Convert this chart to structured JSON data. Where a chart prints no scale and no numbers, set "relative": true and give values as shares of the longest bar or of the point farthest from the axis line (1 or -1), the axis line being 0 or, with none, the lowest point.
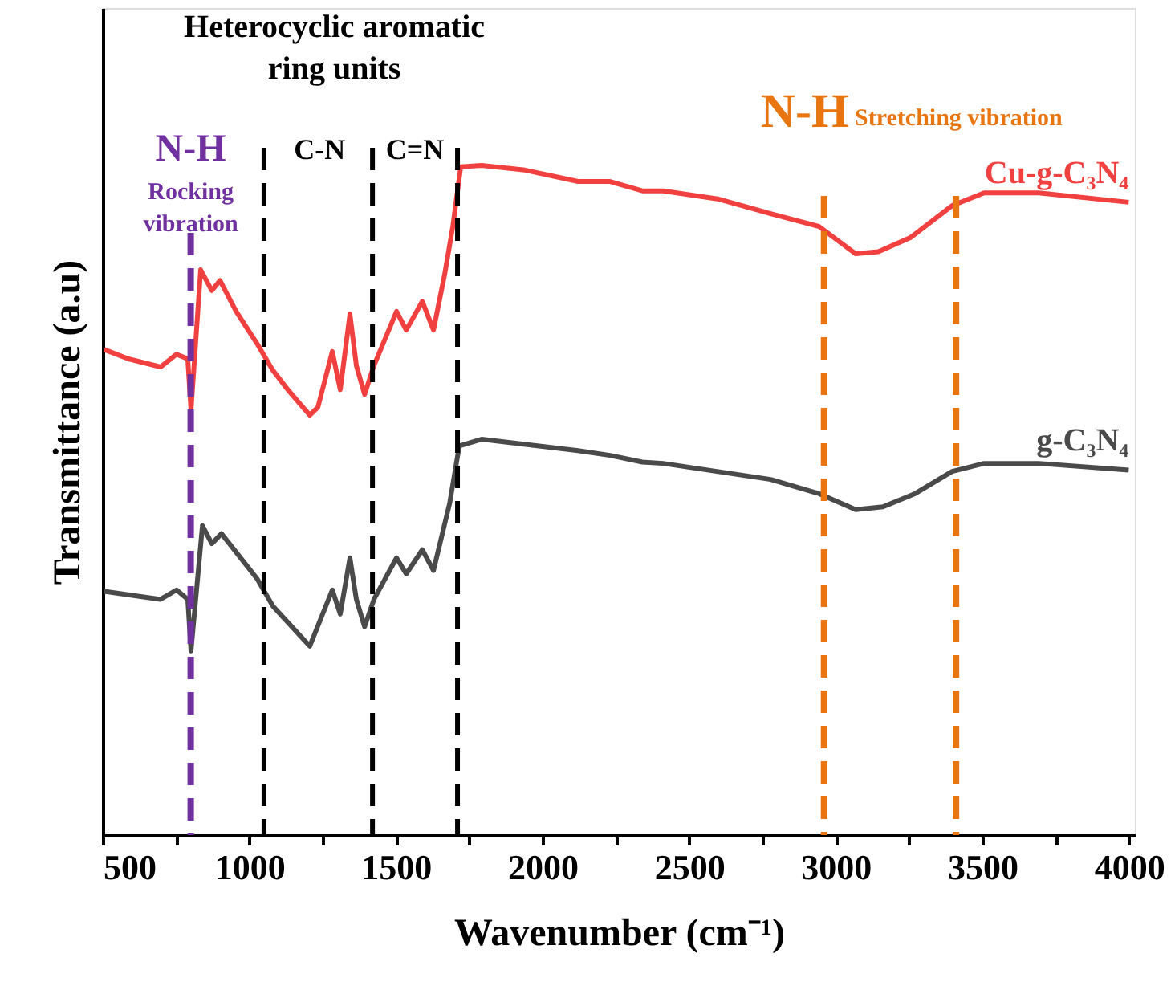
{
  "chart_data": {
    "type": "line",
    "relative": true,
    "xlabel": "Wavenumber (cm⁻¹)",
    "ylabel": "Transmittance (a.u)",
    "xlim": [
      500,
      4020
    ],
    "xticks": [
      500,
      {
        "value": 750,
        "label": null
      },
      1000,
      {
        "value": 1250,
        "label": null
      },
      1500,
      {
        "value": 1750,
        "label": null
      },
      2000,
      {
        "value": 2250,
        "label": null
      },
      2500,
      {
        "value": 2750,
        "label": null
      },
      3000,
      {
        "value": 3250,
        "label": null
      },
      3500,
      {
        "value": 3750,
        "label": null
      },
      4000
    ],
    "tick_labels": "x",
    "grid": false,
    "marker": "none",
    "line_style": "solid",
    "series": [
      {
        "name": "Cu-g-C₃N₄",
        "color": "#f04040",
        "x": [
          505,
          588,
          697,
          752,
          790,
          801,
          834,
          872,
          900,
          955,
          1026,
          1080,
          1135,
          1206,
          1234,
          1283,
          1310,
          1343,
          1365,
          1393,
          1425,
          1502,
          1535,
          1590,
          1628,
          1666,
          1694,
          1721,
          1792,
          1940,
          2121,
          2230,
          2340,
          2411,
          2597,
          2778,
          2942,
          3068,
          3145,
          3254,
          3397,
          3506,
          3692,
          3999
        ],
        "values": [
          0.725,
          0.711,
          0.699,
          0.718,
          0.711,
          0.634,
          0.844,
          0.813,
          0.828,
          0.782,
          0.734,
          0.694,
          0.663,
          0.627,
          0.639,
          0.722,
          0.665,
          0.778,
          0.701,
          0.658,
          0.701,
          0.782,
          0.754,
          0.797,
          0.754,
          0.837,
          0.909,
          0.998,
          1,
          0.993,
          0.976,
          0.976,
          0.962,
          0.962,
          0.95,
          0.928,
          0.909,
          0.868,
          0.871,
          0.892,
          0.94,
          0.959,
          0.959,
          0.945
        ]
      },
      {
        "name": "g-C₃N₄",
        "color": "#4a4a4a",
        "x": [
          505,
          697,
          752,
          790,
          801,
          840,
          872,
          905,
          1026,
          1080,
          1206,
          1283,
          1310,
          1343,
          1365,
          1393,
          1425,
          1502,
          1535,
          1590,
          1628,
          1683,
          1716,
          1792,
          2121,
          2230,
          2340,
          2411,
          2778,
          2942,
          3068,
          3161,
          3271,
          3397,
          3506,
          3692,
          3999
        ],
        "values": [
          0.364,
          0.352,
          0.366,
          0.352,
          0.275,
          0.462,
          0.435,
          0.45,
          0.383,
          0.342,
          0.282,
          0.366,
          0.33,
          0.414,
          0.352,
          0.311,
          0.352,
          0.414,
          0.39,
          0.426,
          0.395,
          0.495,
          0.581,
          0.591,
          0.574,
          0.567,
          0.557,
          0.555,
          0.531,
          0.51,
          0.486,
          0.49,
          0.51,
          0.543,
          0.555,
          0.555,
          0.545
        ]
      }
    ],
    "ref_lines": [
      {
        "axis": "x",
        "value": 800,
        "color": "#7030a0",
        "line_style": "dashed"
      },
      {
        "axis": "x",
        "value": 1050,
        "color": "#000000",
        "line_style": "dashed"
      },
      {
        "axis": "x",
        "value": 1420,
        "color": "#000000",
        "line_style": "dashed"
      },
      {
        "axis": "x",
        "value": 1710,
        "color": "#000000",
        "line_style": "dashed"
      },
      {
        "axis": "x",
        "value": 2960,
        "color": "#e87510",
        "line_style": "dashed"
      },
      {
        "axis": "x",
        "value": 3410,
        "color": "#e87510",
        "line_style": "dashed"
      }
    ],
    "annotations": [
      "N-H",
      "Rocking",
      "vibration",
      "Heterocyclic aromatic",
      "ring units",
      "C-N",
      "C=N",
      "N-H",
      "Stretching vibration"
    ]
  }
}
